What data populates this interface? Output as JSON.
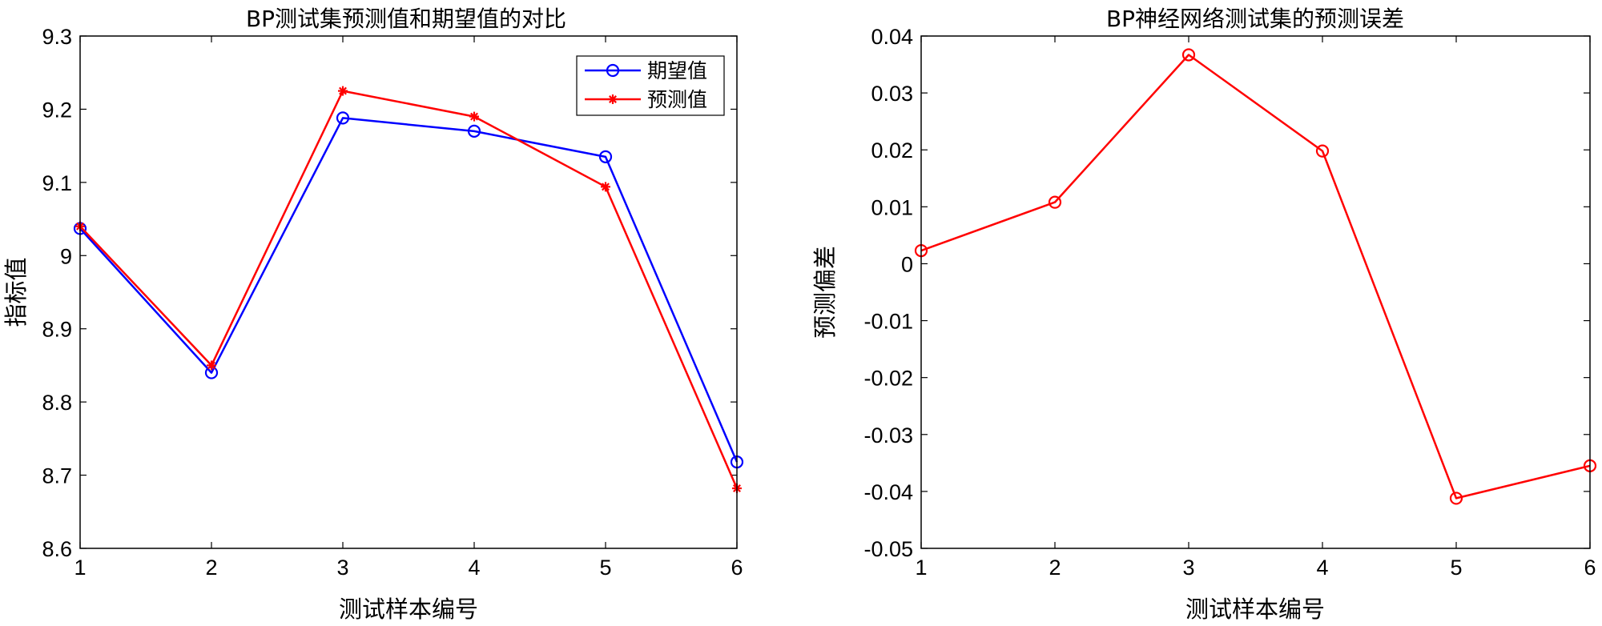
{
  "chart_data": [
    {
      "type": "line",
      "title": "BP测试集预测值和期望值的对比",
      "xlabel": "测试样本编号",
      "ylabel": "指标值",
      "x": [
        1,
        2,
        3,
        4,
        5,
        6
      ],
      "xlim": [
        1,
        6
      ],
      "ylim": [
        8.6,
        9.3
      ],
      "xticks": [
        1,
        2,
        3,
        4,
        5,
        6
      ],
      "yticks": [
        8.6,
        8.7,
        8.8,
        8.9,
        9.0,
        9.1,
        9.2,
        9.3
      ],
      "ytick_labels": [
        "8.6",
        "8.7",
        "8.8",
        "8.9",
        "9",
        "9.1",
        "9.2",
        "9.3"
      ],
      "grid": false,
      "legend_position": "top-right",
      "series": [
        {
          "name": "期望值",
          "values": [
            9.037,
            8.84,
            9.188,
            9.17,
            9.135,
            8.718
          ],
          "color": "#0000ff",
          "marker": "circle"
        },
        {
          "name": "预测值",
          "values": [
            9.04,
            8.85,
            9.225,
            9.19,
            9.094,
            8.682
          ],
          "color": "#ff0000",
          "marker": "asterisk"
        }
      ]
    },
    {
      "type": "line",
      "title": "BP神经网络测试集的预测误差",
      "xlabel": "测试样本编号",
      "ylabel": "预测偏差",
      "x": [
        1,
        2,
        3,
        4,
        5,
        6
      ],
      "xlim": [
        1,
        6
      ],
      "ylim": [
        -0.05,
        0.04
      ],
      "xticks": [
        1,
        2,
        3,
        4,
        5,
        6
      ],
      "yticks": [
        -0.05,
        -0.04,
        -0.03,
        -0.02,
        -0.01,
        0,
        0.01,
        0.02,
        0.03,
        0.04
      ],
      "ytick_labels": [
        "-0.05",
        "-0.04",
        "-0.03",
        "-0.02",
        "-0.01",
        "0",
        "0.01",
        "0.02",
        "0.03",
        "0.04"
      ],
      "grid": false,
      "series": [
        {
          "values": [
            0.0023,
            0.0108,
            0.0367,
            0.0198,
            -0.0412,
            -0.0355
          ],
          "color": "#ff0000",
          "marker": "circle"
        }
      ]
    }
  ]
}
